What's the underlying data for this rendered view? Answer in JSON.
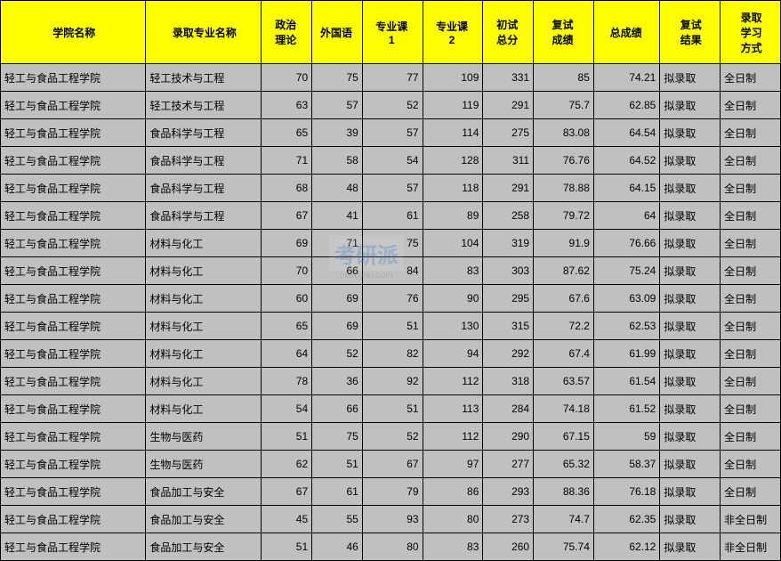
{
  "columns": [
    "学院名称",
    "录取专业名称",
    "政治理论",
    "外国语",
    "专业课1",
    "专业课2",
    "初试总分",
    "复试成绩",
    "总成绩",
    "复试结果",
    "录取学习方式"
  ],
  "rows": [
    [
      "轻工与食品工程学院",
      "轻工技术与工程",
      "70",
      "75",
      "77",
      "109",
      "331",
      "85",
      "74.21",
      "拟录取",
      "全日制"
    ],
    [
      "轻工与食品工程学院",
      "轻工技术与工程",
      "63",
      "57",
      "52",
      "119",
      "291",
      "75.7",
      "62.85",
      "拟录取",
      "全日制"
    ],
    [
      "轻工与食品工程学院",
      "食品科学与工程",
      "65",
      "39",
      "57",
      "114",
      "275",
      "83.08",
      "64.54",
      "拟录取",
      "全日制"
    ],
    [
      "轻工与食品工程学院",
      "食品科学与工程",
      "71",
      "58",
      "54",
      "128",
      "311",
      "76.76",
      "64.52",
      "拟录取",
      "全日制"
    ],
    [
      "轻工与食品工程学院",
      "食品科学与工程",
      "68",
      "48",
      "57",
      "118",
      "291",
      "78.88",
      "64.15",
      "拟录取",
      "全日制"
    ],
    [
      "轻工与食品工程学院",
      "食品科学与工程",
      "67",
      "41",
      "61",
      "89",
      "258",
      "79.72",
      "64",
      "拟录取",
      "全日制"
    ],
    [
      "轻工与食品工程学院",
      "材料与化工",
      "69",
      "71",
      "75",
      "104",
      "319",
      "91.9",
      "76.66",
      "拟录取",
      "全日制"
    ],
    [
      "轻工与食品工程学院",
      "材料与化工",
      "70",
      "66",
      "84",
      "83",
      "303",
      "87.62",
      "75.24",
      "拟录取",
      "全日制"
    ],
    [
      "轻工与食品工程学院",
      "材料与化工",
      "60",
      "69",
      "76",
      "90",
      "295",
      "67.6",
      "63.09",
      "拟录取",
      "全日制"
    ],
    [
      "轻工与食品工程学院",
      "材料与化工",
      "65",
      "69",
      "51",
      "130",
      "315",
      "72.2",
      "62.53",
      "拟录取",
      "全日制"
    ],
    [
      "轻工与食品工程学院",
      "材料与化工",
      "64",
      "52",
      "82",
      "94",
      "292",
      "67.4",
      "61.99",
      "拟录取",
      "全日制"
    ],
    [
      "轻工与食品工程学院",
      "材料与化工",
      "78",
      "36",
      "92",
      "112",
      "318",
      "63.57",
      "61.54",
      "拟录取",
      "全日制"
    ],
    [
      "轻工与食品工程学院",
      "材料与化工",
      "54",
      "66",
      "51",
      "113",
      "284",
      "74.18",
      "61.52",
      "拟录取",
      "全日制"
    ],
    [
      "轻工与食品工程学院",
      "生物与医药",
      "51",
      "75",
      "52",
      "112",
      "290",
      "67.15",
      "59",
      "拟录取",
      "全日制"
    ],
    [
      "轻工与食品工程学院",
      "生物与医药",
      "62",
      "51",
      "67",
      "97",
      "277",
      "65.32",
      "58.37",
      "拟录取",
      "全日制"
    ],
    [
      "轻工与食品工程学院",
      "食品加工与安全",
      "67",
      "61",
      "79",
      "86",
      "293",
      "88.36",
      "76.18",
      "拟录取",
      "全日制"
    ],
    [
      "轻工与食品工程学院",
      "食品加工与安全",
      "45",
      "55",
      "93",
      "80",
      "273",
      "74.7",
      "62.35",
      "拟录取",
      "非全日制"
    ],
    [
      "轻工与食品工程学院",
      "食品加工与安全",
      "51",
      "46",
      "80",
      "83",
      "260",
      "75.74",
      "62.12",
      "拟录取",
      "非全日制"
    ]
  ],
  "header_bg": "#ffff00",
  "cell_bg": "#c0c0c0",
  "border_color": "#000000",
  "watermark": {
    "text": "考研派",
    "sub": "okaoyan.com"
  }
}
